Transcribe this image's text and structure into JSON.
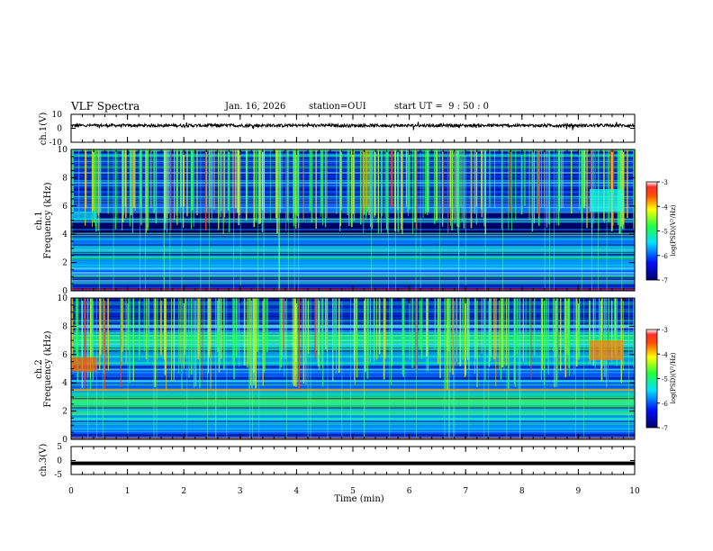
{
  "header": {
    "title": "VLF Spectra",
    "date": "Jan. 16, 2026",
    "station": "station=OUI",
    "start": "start UT =  9 : 50 : 0"
  },
  "chart_data": [
    {
      "type": "line",
      "ylabel": "ch.1(V)",
      "ylim": [
        -10,
        10
      ],
      "yticks": [
        "10",
        "0",
        "-10"
      ],
      "xlim": [
        0,
        10
      ],
      "series": [
        {
          "values": [
            2,
            2
          ]
        }
      ]
    },
    {
      "type": "heatmap",
      "ylabel_line1": "ch.1",
      "ylabel_line2": "Frequency (kHz)",
      "ylim": [
        0,
        10
      ],
      "yticks": [
        "0",
        "2",
        "4",
        "6",
        "8",
        "10"
      ],
      "xlim": [
        0,
        10
      ],
      "colorbar": {
        "label": "log(PSD)(V²/Hz)",
        "range": [
          -7,
          -3
        ],
        "ticks": [
          "-3",
          "-4",
          "-5",
          "-6",
          "-7"
        ]
      }
    },
    {
      "type": "heatmap",
      "ylabel_line1": "ch.2",
      "ylabel_line2": "Frequency (kHz)",
      "ylim": [
        0,
        10
      ],
      "yticks": [
        "0",
        "2",
        "4",
        "6",
        "8",
        "10"
      ],
      "xlim": [
        0,
        10
      ],
      "colorbar": {
        "label": "log(PSD)(V²/Hz)",
        "range": [
          -7,
          -3
        ],
        "ticks": [
          "-3",
          "-4",
          "-5",
          "-6",
          "-7"
        ]
      }
    },
    {
      "type": "line",
      "ylabel": "ch.3(V)",
      "ylim": [
        -5,
        5
      ],
      "yticks": [
        "5",
        "0",
        "-5"
      ],
      "xlim": [
        0,
        10
      ],
      "series": [
        {
          "values": [
            -1,
            -1
          ]
        }
      ]
    }
  ],
  "xaxis": {
    "label": "Time (min)",
    "ticks": [
      "0",
      "1",
      "2",
      "3",
      "4",
      "5",
      "6",
      "7",
      "8",
      "9",
      "10"
    ]
  }
}
